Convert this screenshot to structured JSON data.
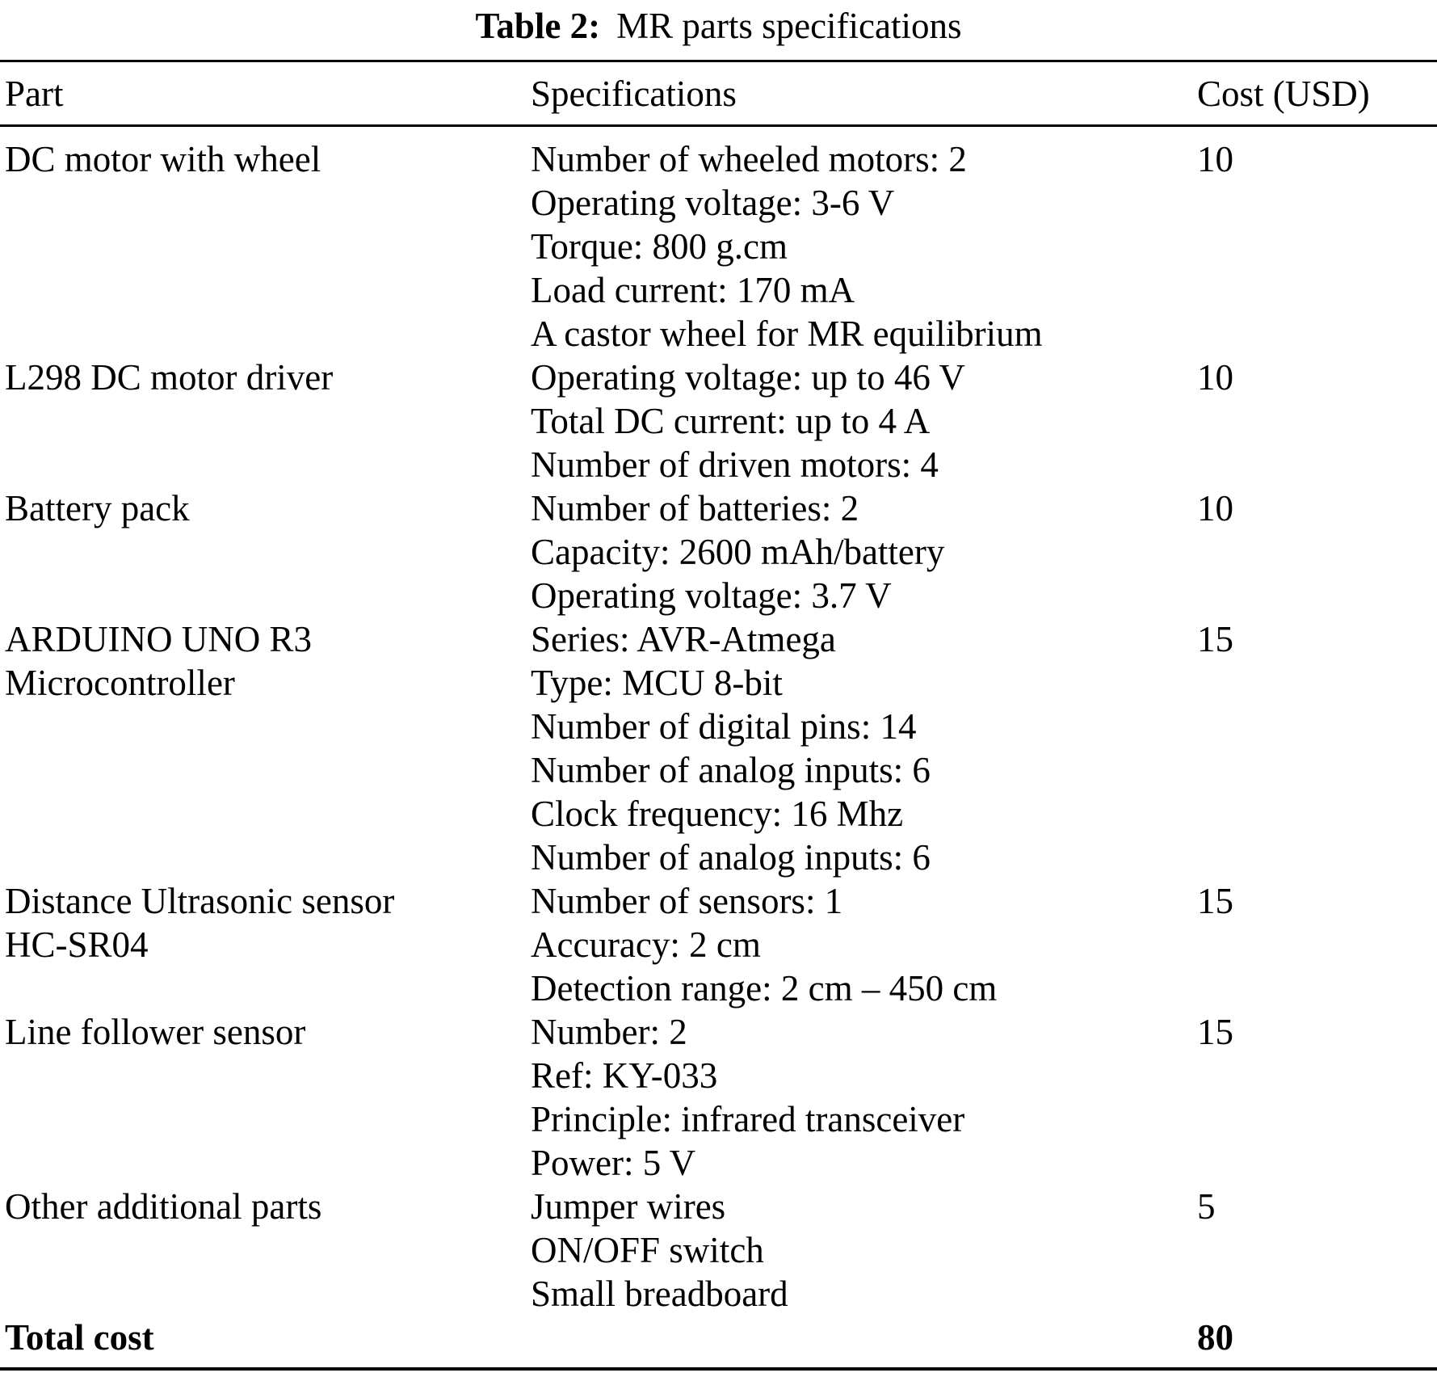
{
  "caption": {
    "label": "Table 2:",
    "text": "MR parts specifications"
  },
  "table": {
    "columns": [
      "Part",
      "Specifications",
      "Cost (USD)"
    ],
    "rows": [
      {
        "part": [
          "DC motor with wheel"
        ],
        "specs": [
          "Number of wheeled motors: 2",
          "Operating voltage: 3-6 V",
          "Torque: 800 g.cm",
          "Load current: 170 mA",
          "A castor wheel for MR equilibrium"
        ],
        "cost": "10"
      },
      {
        "part": [
          "L298 DC motor driver"
        ],
        "specs": [
          "Operating voltage: up to 46 V",
          "Total DC current: up to 4 A",
          "Number of driven motors: 4"
        ],
        "cost": "10"
      },
      {
        "part": [
          "Battery pack"
        ],
        "specs": [
          "Number of batteries: 2",
          "Capacity: 2600 mAh/battery",
          "Operating voltage: 3.7 V"
        ],
        "cost": "10"
      },
      {
        "part": [
          "ARDUINO UNO R3",
          "Microcontroller"
        ],
        "specs": [
          "Series: AVR-Atmega",
          "Type: MCU 8-bit",
          "Number of digital pins: 14",
          "Number of analog inputs: 6",
          "Clock frequency: 16 Mhz",
          "Number of analog inputs: 6"
        ],
        "cost": "15"
      },
      {
        "part": [
          "Distance Ultrasonic sensor",
          "HC-SR04"
        ],
        "specs": [
          "Number of sensors: 1",
          "Accuracy: 2 cm",
          "Detection range: 2 cm – 450 cm"
        ],
        "cost": "15"
      },
      {
        "part": [
          "Line follower sensor"
        ],
        "specs": [
          "Number: 2",
          "Ref: KY-033",
          "Principle: infrared transceiver",
          "Power: 5 V"
        ],
        "cost": "15"
      },
      {
        "part": [
          "Other additional parts"
        ],
        "specs": [
          "Jumper wires",
          "ON/OFF switch",
          "Small breadboard"
        ],
        "cost": "5"
      }
    ],
    "total_row": {
      "label": "Total cost",
      "cost": "80"
    }
  }
}
